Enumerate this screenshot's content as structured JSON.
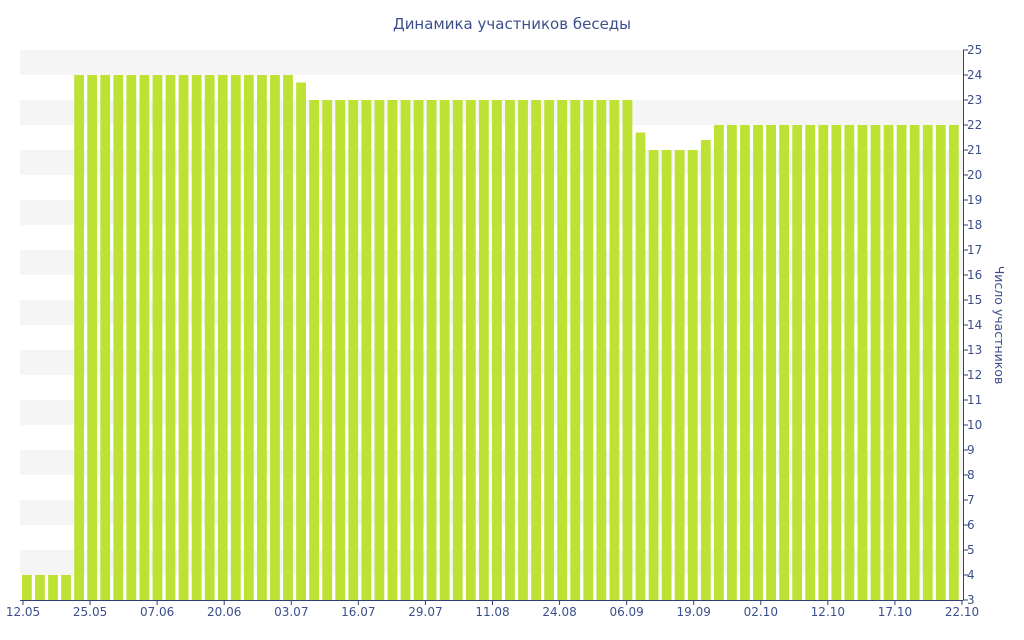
{
  "chart_data": {
    "type": "bar",
    "title": "Динамика участников беседы",
    "ylabel": "Число участников",
    "ylim": [
      3,
      25
    ],
    "y_ticks": [
      3,
      4,
      5,
      6,
      7,
      8,
      9,
      10,
      11,
      12,
      13,
      14,
      15,
      16,
      17,
      18,
      19,
      20,
      21,
      22,
      23,
      24,
      25
    ],
    "x_tick_labels": [
      "12.05",
      "25.05",
      "07.06",
      "20.06",
      "03.07",
      "16.07",
      "29.07",
      "11.08",
      "24.08",
      "06.09",
      "19.09",
      "02.10",
      "12.10",
      "17.10",
      "22.10"
    ],
    "values": [
      4,
      4,
      4,
      4,
      24,
      24,
      24,
      24,
      24,
      24,
      24,
      24,
      24,
      24,
      24,
      24,
      24,
      24,
      24,
      24,
      24,
      23.7,
      23,
      23,
      23,
      23,
      23,
      23,
      23,
      23,
      23,
      23,
      23,
      23,
      23,
      23,
      23,
      23,
      23,
      23,
      23,
      23,
      23,
      23,
      23,
      23,
      23,
      21.7,
      21,
      21,
      21,
      21,
      21.4,
      22,
      22,
      22,
      22,
      22,
      22,
      22,
      22,
      22,
      22,
      22,
      22,
      22,
      22,
      22,
      22,
      22,
      22,
      22
    ],
    "bar_color": "#bde234",
    "band_color": "#f5f5f5",
    "axis_color": "#2f3f73",
    "text_color": "#3b4f8c",
    "grid": "alternating horizontal bands",
    "y_axis_position": "right",
    "legend": "none"
  }
}
